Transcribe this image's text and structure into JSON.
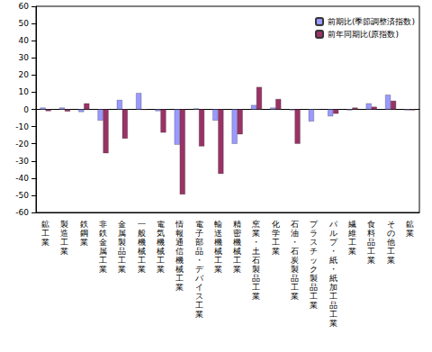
{
  "chart_data": {
    "type": "bar",
    "categories": [
      "鉱工業",
      "製造工業",
      "鉄鋼業",
      "非鉄金属工業",
      "金属製品工業",
      "一般機械工業",
      "電気機械工業",
      "情報通信機械工業",
      "電子部品・デバイス工業",
      "輸送機械工業",
      "精密機械工業",
      "窯業・土石製品工業",
      "化学工業",
      "石油・石炭製品工業",
      "プラスチック製品工業",
      "パルプ・紙・紙加工品工業",
      "繊維工業",
      "食料品工業",
      "その他工業",
      "鉱業"
    ],
    "series": [
      {
        "name": "前期比(季節調整済指数)",
        "color": "#9999ff",
        "values": [
          1.0,
          1.0,
          -1.5,
          -6.5,
          5.5,
          9.5,
          -1.0,
          -20.5,
          0.5,
          -6.5,
          -20.0,
          2.5,
          1.0,
          -0.5,
          -7.0,
          -4.0,
          -0.5,
          3.5,
          8.5,
          -0.5
        ]
      },
      {
        "name": "前年同期比(原指数)",
        "color": "#993366",
        "values": [
          -1.0,
          -1.2,
          3.5,
          -25.5,
          -17.0,
          -0.3,
          -13.5,
          -49.5,
          -21.5,
          -37.5,
          -14.5,
          13.0,
          6.0,
          -20.0,
          0.0,
          -2.5,
          1.0,
          1.5,
          5.0,
          -0.5
        ]
      }
    ],
    "ylim": [
      -60,
      60
    ],
    "yticks": [
      -60,
      -50,
      -40,
      -30,
      -20,
      -10,
      0,
      10,
      20,
      30,
      40,
      50,
      60
    ],
    "grid": false,
    "legend": "upper right"
  }
}
